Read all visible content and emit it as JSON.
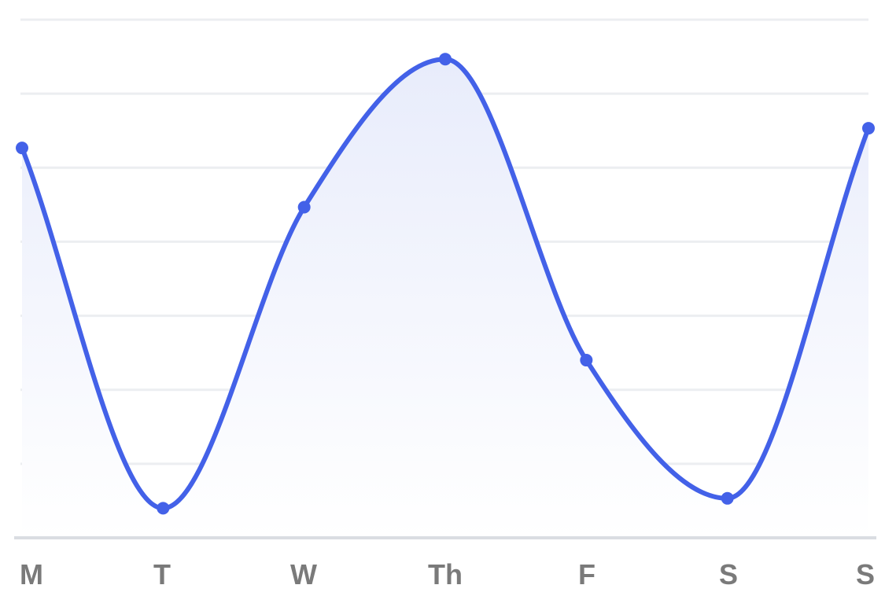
{
  "chart_data": {
    "type": "area",
    "title": "",
    "xlabel": "",
    "ylabel": "",
    "categories": [
      "M",
      "T",
      "W",
      "Th",
      "F",
      "S",
      "S"
    ],
    "series": [
      {
        "values": [
          79,
          6,
          67,
          97,
          36,
          8,
          83
        ]
      }
    ],
    "ylim": [
      0,
      105
    ],
    "grid": true,
    "smooth": true,
    "colors": {
      "line": "#4361e8",
      "fill_top": "#e8ecfb",
      "fill_bottom": "#ffffff"
    }
  }
}
